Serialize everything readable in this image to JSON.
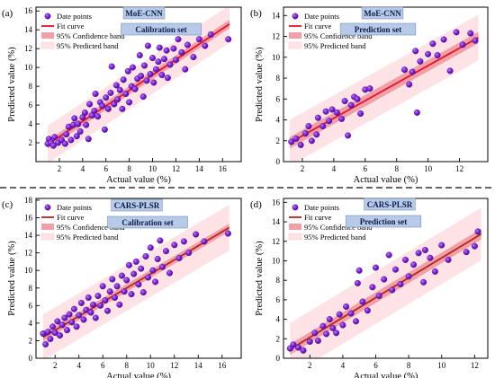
{
  "colors": {
    "point_fill": "#7b1fd6",
    "point_edge": "#4a0e8a",
    "fit_line_top": "#e8102a",
    "fit_line_bottom": "#b3261e",
    "confidence_band": "#f2a0a8",
    "prediction_band": "#fde3e6",
    "tag_fill": "#b7cbe8",
    "tag_edge": "#7a90b8",
    "divider": "#333333"
  },
  "chart_data": [
    {
      "type": "scatter",
      "panel": "(a)",
      "model": "MoE-CNN",
      "set": "Calibration set",
      "xlabel": "Actual value (%)",
      "ylabel": "Predicted value (%)",
      "xlim": [
        0,
        17.6
      ],
      "ylim": [
        0,
        16.4
      ],
      "xticks": [
        2,
        4,
        6,
        8,
        10,
        12,
        14,
        16
      ],
      "yticks": [
        2,
        4,
        6,
        8,
        10,
        12,
        14,
        16
      ],
      "legend": [
        "Date points",
        "Fit curve",
        "95% Confidence band",
        "95% Predicted band"
      ],
      "fit": {
        "intercept": 1.0,
        "slope": 0.82,
        "x_range": [
          1.0,
          16.6
        ]
      },
      "confidence_halfwidth": 0.45,
      "prediction_halfwidth": 2.0,
      "points": [
        [
          1.0,
          1.9
        ],
        [
          1.1,
          2.4
        ],
        [
          1.3,
          2.0
        ],
        [
          1.5,
          1.7
        ],
        [
          1.6,
          2.6
        ],
        [
          1.9,
          2.0
        ],
        [
          2.2,
          2.3
        ],
        [
          2.5,
          1.9
        ],
        [
          2.6,
          2.9
        ],
        [
          2.8,
          3.7
        ],
        [
          3.0,
          2.3
        ],
        [
          3.2,
          3.9
        ],
        [
          3.3,
          4.6
        ],
        [
          3.5,
          2.7
        ],
        [
          3.6,
          4.0
        ],
        [
          3.8,
          3.2
        ],
        [
          4.0,
          4.7
        ],
        [
          4.2,
          5.2
        ],
        [
          4.3,
          3.9
        ],
        [
          4.5,
          2.4
        ],
        [
          4.6,
          6.1
        ],
        [
          4.8,
          4.9
        ],
        [
          5.0,
          5.4
        ],
        [
          5.1,
          7.2
        ],
        [
          5.3,
          4.8
        ],
        [
          5.5,
          6.3
        ],
        [
          5.7,
          5.9
        ],
        [
          5.9,
          3.4
        ],
        [
          6.0,
          6.8
        ],
        [
          6.2,
          5.6
        ],
        [
          6.4,
          7.3
        ],
        [
          6.5,
          10.1
        ],
        [
          6.7,
          6.1
        ],
        [
          6.9,
          8.1
        ],
        [
          7.0,
          6.6
        ],
        [
          7.2,
          7.6
        ],
        [
          7.4,
          5.6
        ],
        [
          7.5,
          8.7
        ],
        [
          7.7,
          7.2
        ],
        [
          7.9,
          9.6
        ],
        [
          8.0,
          6.3
        ],
        [
          8.2,
          8.0
        ],
        [
          8.3,
          10.0
        ],
        [
          8.5,
          7.7
        ],
        [
          8.7,
          8.8
        ],
        [
          8.9,
          11.3
        ],
        [
          9.0,
          9.1
        ],
        [
          9.2,
          6.9
        ],
        [
          9.3,
          10.2
        ],
        [
          9.5,
          8.6
        ],
        [
          9.6,
          12.3
        ],
        [
          9.8,
          9.3
        ],
        [
          10.0,
          11.0
        ],
        [
          10.1,
          8.4
        ],
        [
          10.3,
          9.8
        ],
        [
          10.5,
          10.6
        ],
        [
          10.6,
          12.1
        ],
        [
          10.8,
          9.2
        ],
        [
          11.0,
          10.9
        ],
        [
          11.2,
          11.8
        ],
        [
          11.3,
          8.9
        ],
        [
          11.5,
          10.3
        ],
        [
          11.8,
          12.0
        ],
        [
          12.0,
          10.8
        ],
        [
          12.2,
          13.0
        ],
        [
          12.5,
          11.6
        ],
        [
          12.8,
          9.8
        ],
        [
          13.0,
          12.4
        ],
        [
          13.5,
          11.1
        ],
        [
          14.0,
          13.0
        ],
        [
          14.5,
          12.3
        ],
        [
          15.0,
          13.5
        ],
        [
          16.5,
          13.0
        ]
      ]
    },
    {
      "type": "scatter",
      "panel": "(b)",
      "model": "MoE-CNN",
      "set": "Prediction set",
      "xlabel": "Actual value (%)",
      "ylabel": "Predicted value (%)",
      "xlim": [
        0.8,
        13.8
      ],
      "ylim": [
        0,
        14.8
      ],
      "xticks": [
        2,
        4,
        6,
        8,
        10,
        12
      ],
      "yticks": [
        0,
        2,
        4,
        6,
        8,
        10,
        12,
        14
      ],
      "legend": [
        "Date points",
        "Fit curve",
        "95% Confidence band",
        "95% Predicted band"
      ],
      "fit": {
        "intercept": 0.8,
        "slope": 0.84,
        "x_range": [
          1.2,
          13.2
        ]
      },
      "confidence_halfwidth": 0.55,
      "prediction_halfwidth": 2.2,
      "points": [
        [
          1.3,
          1.9
        ],
        [
          1.6,
          2.2
        ],
        [
          1.9,
          1.6
        ],
        [
          2.2,
          2.7
        ],
        [
          2.4,
          3.4
        ],
        [
          2.6,
          2.0
        ],
        [
          2.9,
          2.6
        ],
        [
          3.0,
          4.2
        ],
        [
          3.3,
          3.4
        ],
        [
          3.5,
          4.8
        ],
        [
          3.7,
          3.9
        ],
        [
          3.9,
          5.0
        ],
        [
          4.2,
          4.7
        ],
        [
          4.5,
          4.1
        ],
        [
          4.7,
          5.8
        ],
        [
          4.9,
          2.5
        ],
        [
          5.1,
          5.4
        ],
        [
          5.3,
          6.2
        ],
        [
          5.5,
          6.0
        ],
        [
          5.7,
          4.6
        ],
        [
          6.0,
          6.9
        ],
        [
          6.3,
          7.0
        ],
        [
          8.5,
          8.8
        ],
        [
          8.8,
          7.4
        ],
        [
          9.0,
          8.6
        ],
        [
          9.2,
          10.6
        ],
        [
          9.3,
          4.7
        ],
        [
          9.5,
          9.6
        ],
        [
          10.0,
          10.3
        ],
        [
          10.3,
          11.3
        ],
        [
          10.6,
          10.2
        ],
        [
          11.0,
          11.7
        ],
        [
          11.4,
          8.7
        ],
        [
          11.8,
          12.4
        ],
        [
          12.2,
          11.2
        ],
        [
          12.7,
          12.3
        ],
        [
          13.0,
          11.6
        ]
      ]
    },
    {
      "type": "scatter",
      "panel": "(c)",
      "model": "CARS-PLSR",
      "set": "Calibration set",
      "xlabel": "Actual value (%)",
      "ylabel": "Predicted value (%)",
      "xlim": [
        0.4,
        17.6
      ],
      "ylim": [
        0,
        18.2
      ],
      "xticks": [
        2,
        4,
        6,
        8,
        10,
        12,
        14,
        16
      ],
      "yticks": [
        0,
        2,
        4,
        6,
        8,
        10,
        12,
        14,
        16,
        18
      ],
      "legend": [
        "Date points",
        "Fit curve",
        "95% Confidence band",
        "95% Predicted band"
      ],
      "fit": {
        "intercept": 1.6,
        "slope": 0.8,
        "x_range": [
          1.0,
          16.6
        ]
      },
      "confidence_halfwidth": 0.45,
      "prediction_halfwidth": 2.6,
      "points": [
        [
          1.0,
          2.8
        ],
        [
          1.2,
          1.6
        ],
        [
          1.4,
          3.0
        ],
        [
          1.6,
          2.2
        ],
        [
          1.8,
          3.6
        ],
        [
          2.0,
          2.9
        ],
        [
          2.2,
          4.2
        ],
        [
          2.4,
          2.6
        ],
        [
          2.6,
          3.8
        ],
        [
          2.8,
          4.6
        ],
        [
          3.0,
          3.2
        ],
        [
          3.2,
          5.0
        ],
        [
          3.4,
          4.1
        ],
        [
          3.6,
          5.6
        ],
        [
          3.8,
          3.6
        ],
        [
          4.0,
          4.9
        ],
        [
          4.2,
          6.3
        ],
        [
          4.4,
          4.4
        ],
        [
          4.6,
          5.5
        ],
        [
          4.8,
          6.9
        ],
        [
          5.0,
          5.2
        ],
        [
          5.2,
          6.1
        ],
        [
          5.4,
          4.6
        ],
        [
          5.6,
          7.1
        ],
        [
          5.8,
          6.0
        ],
        [
          6.0,
          8.2
        ],
        [
          6.2,
          6.6
        ],
        [
          6.4,
          5.4
        ],
        [
          6.6,
          7.6
        ],
        [
          6.8,
          9.0
        ],
        [
          7.0,
          6.9
        ],
        [
          7.2,
          8.2
        ],
        [
          7.4,
          6.1
        ],
        [
          7.6,
          9.4
        ],
        [
          7.8,
          7.6
        ],
        [
          8.0,
          8.9
        ],
        [
          8.2,
          10.6
        ],
        [
          8.4,
          7.3
        ],
        [
          8.6,
          9.6
        ],
        [
          8.8,
          11.0
        ],
        [
          9.0,
          8.4
        ],
        [
          9.2,
          10.2
        ],
        [
          9.4,
          7.5
        ],
        [
          9.6,
          11.6
        ],
        [
          9.8,
          9.2
        ],
        [
          10.0,
          12.6
        ],
        [
          10.2,
          10.0
        ],
        [
          10.4,
          8.7
        ],
        [
          10.6,
          11.3
        ],
        [
          10.8,
          13.4
        ],
        [
          11.0,
          10.4
        ],
        [
          11.3,
          12.2
        ],
        [
          11.6,
          9.7
        ],
        [
          12.0,
          12.9
        ],
        [
          12.4,
          11.4
        ],
        [
          12.8,
          13.3
        ],
        [
          13.2,
          12.0
        ],
        [
          13.8,
          14.1
        ],
        [
          14.5,
          13.3
        ],
        [
          16.5,
          14.2
        ]
      ]
    },
    {
      "type": "scatter",
      "panel": "(d)",
      "model": "CARS-PLSR",
      "set": "Prediction set",
      "xlabel": "Actual value (%)",
      "ylabel": "Predicted value (%)",
      "xlim": [
        0.4,
        12.8
      ],
      "ylim": [
        0,
        16.4
      ],
      "xticks": [
        2,
        4,
        6,
        8,
        10,
        12
      ],
      "yticks": [
        0,
        2,
        4,
        6,
        8,
        10,
        12,
        14,
        16
      ],
      "legend": [
        "Date points",
        "Fit curve",
        "95% Confidence band",
        "95% Predicted band"
      ],
      "fit": {
        "intercept": 0.1,
        "slope": 1.02,
        "x_range": [
          0.8,
          12.4
        ]
      },
      "confidence_halfwidth": 0.55,
      "prediction_halfwidth": 2.7,
      "points": [
        [
          0.8,
          1.0
        ],
        [
          1.0,
          1.4
        ],
        [
          1.3,
          1.1
        ],
        [
          1.6,
          0.8
        ],
        [
          2.0,
          1.7
        ],
        [
          2.3,
          2.6
        ],
        [
          2.5,
          1.8
        ],
        [
          2.8,
          3.3
        ],
        [
          3.0,
          2.5
        ],
        [
          3.2,
          4.0
        ],
        [
          3.4,
          3.1
        ],
        [
          3.6,
          2.6
        ],
        [
          3.8,
          4.5
        ],
        [
          4.0,
          3.4
        ],
        [
          4.2,
          5.3
        ],
        [
          4.5,
          4.6
        ],
        [
          4.8,
          3.8
        ],
        [
          4.9,
          7.7
        ],
        [
          5.0,
          9.0
        ],
        [
          5.2,
          5.8
        ],
        [
          5.5,
          4.9
        ],
        [
          5.8,
          7.3
        ],
        [
          6.0,
          9.3
        ],
        [
          6.2,
          6.4
        ],
        [
          6.5,
          8.1
        ],
        [
          6.8,
          10.6
        ],
        [
          7.0,
          7.0
        ],
        [
          7.2,
          9.1
        ],
        [
          7.5,
          7.6
        ],
        [
          7.8,
          10.1
        ],
        [
          8.0,
          8.4
        ],
        [
          8.3,
          9.6
        ],
        [
          8.6,
          10.8
        ],
        [
          8.9,
          7.8
        ],
        [
          9.0,
          11.1
        ],
        [
          9.3,
          10.3
        ],
        [
          9.6,
          8.9
        ],
        [
          10.0,
          11.6
        ],
        [
          10.4,
          10.1
        ],
        [
          11.5,
          10.9
        ],
        [
          12.0,
          11.5
        ],
        [
          12.2,
          13.0
        ]
      ]
    }
  ]
}
